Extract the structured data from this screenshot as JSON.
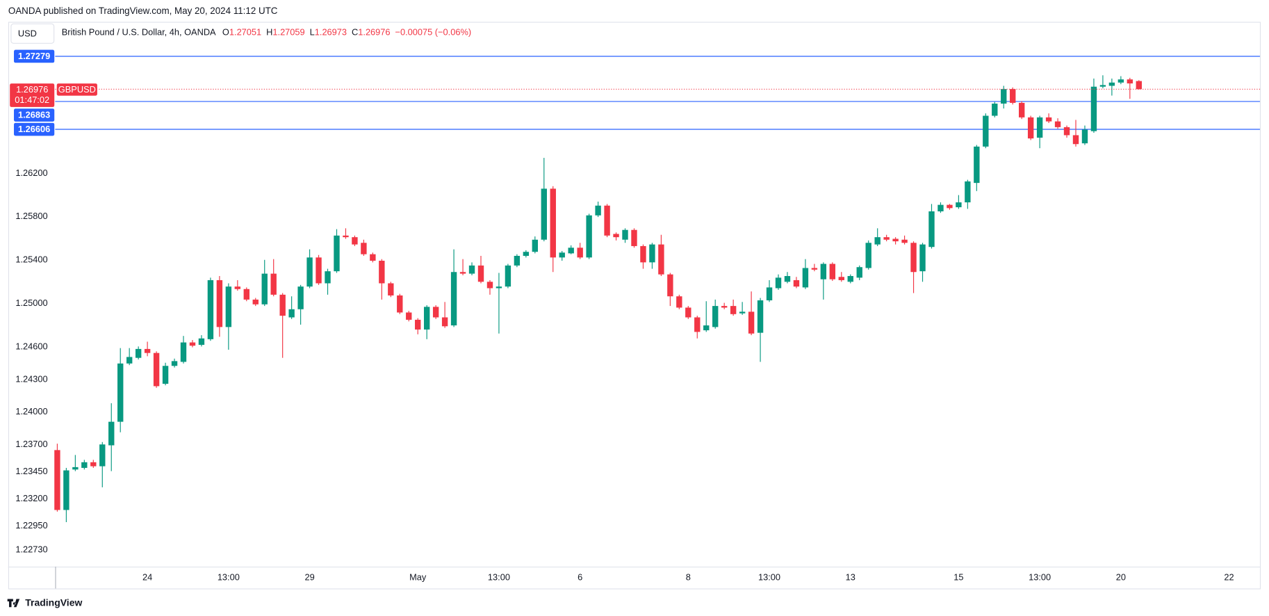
{
  "header": "OANDA published on TradingView.com, May 20, 2024 11:12 UTC",
  "footer": "TradingView",
  "currency_button": "USD",
  "chart_data": {
    "type": "candlestick",
    "legend": {
      "description": "British Pound / U.S. Dollar, 4h, OANDA",
      "ohlc_labels": [
        "O",
        "H",
        "L",
        "C"
      ],
      "change": "−0.00075 (−0.06%)"
    },
    "countdown": "01:47:02",
    "up_color": "#089981",
    "down_color": "#f23645",
    "grid": false,
    "ylim": [
      1.22576,
      1.27589
    ],
    "yticks": [
      {
        "value": 1.2273,
        "label": "1.22730"
      },
      {
        "value": 1.2295,
        "label": "1.22950"
      },
      {
        "value": 1.232,
        "label": "1.23200"
      },
      {
        "value": 1.2345,
        "label": "1.23450"
      },
      {
        "value": 1.237,
        "label": "1.23700"
      },
      {
        "value": 1.24,
        "label": "1.24000"
      },
      {
        "value": 1.243,
        "label": "1.24300"
      },
      {
        "value": 1.246,
        "label": "1.24600"
      },
      {
        "value": 1.25,
        "label": "1.25000"
      },
      {
        "value": 1.254,
        "label": "1.25400"
      },
      {
        "value": 1.258,
        "label": "1.25800"
      },
      {
        "value": 1.262,
        "label": "1.26200"
      }
    ],
    "hlines": [
      {
        "value": 1.27279,
        "color": "#2962ff"
      },
      {
        "value": 1.26863,
        "color": "#2962ff"
      },
      {
        "value": 1.26606,
        "color": "#2962ff"
      }
    ],
    "categories": [
      null,
      null,
      null,
      null,
      null,
      null,
      null,
      null,
      null,
      null,
      "24",
      null,
      null,
      null,
      null,
      null,
      null,
      null,
      null,
      "13:00",
      null,
      null,
      null,
      null,
      null,
      null,
      null,
      null,
      "29",
      null,
      null,
      null,
      null,
      null,
      null,
      null,
      null,
      null,
      null,
      null,
      "May",
      null,
      null,
      null,
      null,
      null,
      null,
      null,
      null,
      "13:00",
      null,
      null,
      null,
      null,
      null,
      null,
      null,
      null,
      "6",
      null,
      null,
      null,
      null,
      null,
      null,
      null,
      null,
      null,
      null,
      null,
      "8",
      null,
      null,
      null,
      null,
      null,
      null,
      null,
      null,
      "13:00",
      null,
      null,
      null,
      null,
      null,
      null,
      null,
      null,
      "13",
      null,
      null,
      null,
      null,
      null,
      null,
      null,
      null,
      null,
      null,
      null,
      "15",
      null,
      null,
      null,
      null,
      null,
      null,
      null,
      null,
      "13:00",
      null,
      null,
      null,
      null,
      null,
      null,
      null,
      null,
      "20",
      null,
      null,
      null,
      null,
      null,
      null,
      null,
      null,
      null,
      null,
      null,
      "22",
      null,
      null,
      null
    ],
    "series": [
      {
        "name": "GBPUSD",
        "open": [
          1.2365,
          1.23098,
          1.23471,
          1.23486,
          1.23538,
          1.23501,
          1.23694,
          1.23911,
          1.24448,
          1.245,
          1.24582,
          1.24545,
          1.24261,
          1.24426,
          1.24463,
          1.24642,
          1.2462,
          1.24672,
          1.25216,
          1.24784,
          1.25157,
          1.25134,
          1.25037,
          1.24993,
          1.25276,
          1.25082,
          1.24873,
          1.24948,
          1.25157,
          1.25425,
          1.25187,
          1.25298,
          1.25627,
          1.25612,
          1.2556,
          1.25455,
          1.25395,
          1.25187,
          1.25075,
          1.24918,
          1.24851,
          1.24761,
          1.2497,
          1.24873,
          1.24799,
          1.25291,
          1.25276,
          1.25351,
          1.25201,
          1.25142,
          1.25157,
          1.25351,
          1.2544,
          1.25477,
          1.25589,
          1.26059,
          1.25425,
          1.25463,
          1.25515,
          1.25425,
          1.25813,
          1.25903,
          1.25642,
          1.25589,
          1.25679,
          1.2553,
          1.2538,
          1.25545,
          1.25269,
          1.25067,
          1.24963,
          1.24873,
          1.24754,
          1.24784,
          1.24978,
          1.24978,
          1.2491,
          1.24925,
          1.24731,
          1.2503,
          1.25142,
          1.25201,
          1.25216,
          1.25149,
          1.25328,
          1.25224,
          1.25366,
          1.25246,
          1.25201,
          1.25239,
          1.25328,
          1.25545,
          1.25612,
          1.25597,
          1.25589,
          1.2556,
          1.25298,
          1.25522,
          1.2585,
          1.2591,
          1.25888,
          1.25933,
          1.26112,
          1.26447,
          1.26731,
          1.26843,
          1.26977,
          1.2685,
          1.26716,
          1.26529,
          1.26716,
          1.26679,
          1.26626,
          1.26552,
          1.26477,
          1.26589,
          1.26999,
          1.27007,
          1.27037,
          1.27066,
          1.27051,
          null,
          null,
          null,
          null,
          null,
          null,
          null,
          null,
          null,
          null,
          null,
          null,
          null
        ],
        "high": [
          1.23709,
          1.23486,
          1.23605,
          1.2356,
          1.2356,
          1.23724,
          1.24082,
          1.2459,
          1.2459,
          1.24605,
          1.24649,
          1.2456,
          1.24455,
          1.24493,
          1.24702,
          1.24664,
          1.24709,
          1.25239,
          1.25254,
          1.25187,
          1.25216,
          1.25149,
          1.25052,
          1.25403,
          1.2541,
          1.25097,
          1.25067,
          1.25172,
          1.255,
          1.25448,
          1.25321,
          1.25686,
          1.25694,
          1.25627,
          1.25589,
          1.2547,
          1.2541,
          1.25201,
          1.2509,
          1.24933,
          1.24866,
          1.24985,
          1.24985,
          1.25015,
          1.255,
          1.2541,
          1.2538,
          1.2544,
          1.25216,
          1.25283,
          1.25366,
          1.25455,
          1.25492,
          1.25619,
          1.26343,
          1.26082,
          1.25485,
          1.25537,
          1.2556,
          1.25828,
          1.2594,
          1.25918,
          1.25656,
          1.25694,
          1.25694,
          1.25545,
          1.2556,
          1.25634,
          1.25283,
          1.25082,
          1.24978,
          1.24888,
          1.25022,
          1.25037,
          1.25007,
          1.25037,
          1.25015,
          1.25112,
          1.25052,
          1.25216,
          1.25269,
          1.25291,
          1.25246,
          1.2541,
          1.25366,
          1.2538,
          1.2538,
          1.25291,
          1.25269,
          1.25351,
          1.25582,
          1.25694,
          1.25634,
          1.25612,
          1.25627,
          1.25574,
          1.2556,
          1.25918,
          1.25933,
          1.25918,
          1.26,
          1.26141,
          1.26462,
          1.26753,
          1.26858,
          1.27007,
          1.26992,
          1.26865,
          1.26731,
          1.26731,
          1.26753,
          1.26708,
          1.26641,
          1.26693,
          1.26641,
          1.27074,
          1.27104,
          1.27074,
          1.27096,
          1.27081,
          1.27059,
          null,
          null,
          null,
          null,
          null,
          null,
          null,
          null,
          null,
          null,
          null,
          null,
          null
        ],
        "low": [
          1.23083,
          1.22986,
          1.23456,
          1.23471,
          1.23486,
          1.23307,
          1.23456,
          1.23814,
          1.24433,
          1.24485,
          1.24515,
          1.24224,
          1.24247,
          1.24411,
          1.24448,
          1.24597,
          1.24605,
          1.24657,
          1.24694,
          1.24575,
          1.25119,
          1.25022,
          1.24978,
          1.24978,
          1.25067,
          1.245,
          1.24858,
          1.24806,
          1.25142,
          1.25172,
          1.25082,
          1.25283,
          1.25597,
          1.2553,
          1.2544,
          1.2538,
          1.25037,
          1.2506,
          1.24903,
          1.24836,
          1.24717,
          1.24672,
          1.24858,
          1.24776,
          1.24784,
          1.25261,
          1.25261,
          1.25187,
          1.25082,
          1.24724,
          1.25142,
          1.25336,
          1.25425,
          1.25463,
          1.25574,
          1.25291,
          1.25395,
          1.25455,
          1.2541,
          1.2541,
          1.25798,
          1.25612,
          1.25582,
          1.2556,
          1.25515,
          1.25321,
          1.25321,
          1.25254,
          1.24978,
          1.24948,
          1.24858,
          1.24679,
          1.24739,
          1.24769,
          1.24948,
          1.24888,
          1.24896,
          1.24709,
          1.24463,
          1.25015,
          1.25127,
          1.25187,
          1.25142,
          1.25134,
          1.25298,
          1.25037,
          1.25209,
          1.25201,
          1.25187,
          1.25216,
          1.25313,
          1.2553,
          1.25574,
          1.25545,
          1.25545,
          1.25097,
          1.25201,
          1.25507,
          1.25836,
          1.25865,
          1.25873,
          1.25873,
          1.26037,
          1.26432,
          1.26716,
          1.26798,
          1.26835,
          1.26701,
          1.26507,
          1.26432,
          1.26664,
          1.26611,
          1.26529,
          1.26447,
          1.26462,
          1.26574,
          1.26984,
          1.26917,
          1.27022,
          1.26887,
          1.26973,
          null,
          null,
          null,
          null,
          null,
          null,
          null,
          null,
          null,
          null,
          null,
          null,
          null
        ],
        "close": [
          1.23098,
          1.23463,
          1.23493,
          1.23538,
          1.23501,
          1.23702,
          1.23911,
          1.24448,
          1.24508,
          1.24582,
          1.24545,
          1.24239,
          1.24426,
          1.2447,
          1.24642,
          1.24612,
          1.24679,
          1.25216,
          1.24784,
          1.25157,
          1.25134,
          1.25037,
          1.24993,
          1.25276,
          1.25082,
          1.24888,
          1.24948,
          1.25157,
          1.25425,
          1.25187,
          1.25298,
          1.25627,
          1.25612,
          1.25545,
          1.25455,
          1.25395,
          1.25187,
          1.25075,
          1.24918,
          1.24851,
          1.24761,
          1.2497,
          1.24873,
          1.24791,
          1.25291,
          1.25276,
          1.25351,
          1.25201,
          1.25142,
          1.25157,
          1.25351,
          1.2544,
          1.25477,
          1.25589,
          1.26059,
          1.25425,
          1.2547,
          1.25515,
          1.25425,
          1.25813,
          1.25903,
          1.25627,
          1.25612,
          1.25679,
          1.2553,
          1.2538,
          1.25545,
          1.25269,
          1.25067,
          1.24963,
          1.24873,
          1.24739,
          1.24799,
          1.24978,
          1.24963,
          1.24903,
          1.24925,
          1.24724,
          1.2503,
          1.25149,
          1.25239,
          1.25254,
          1.25157,
          1.25328,
          1.25313,
          1.25366,
          1.25224,
          1.25216,
          1.25254,
          1.25336,
          1.2556,
          1.25612,
          1.25589,
          1.25574,
          1.2556,
          1.25291,
          1.25545,
          1.2585,
          1.2591,
          1.2588,
          1.25933,
          1.26126,
          1.26447,
          1.26731,
          1.26843,
          1.26977,
          1.2685,
          1.26716,
          1.26522,
          1.26716,
          1.26679,
          1.26626,
          1.26552,
          1.2647,
          1.26604,
          1.26999,
          1.27014,
          1.27037,
          1.27066,
          1.27029,
          1.26976,
          null,
          null,
          null,
          null,
          null,
          null,
          null,
          null,
          null,
          null,
          null,
          null,
          null
        ]
      }
    ]
  }
}
